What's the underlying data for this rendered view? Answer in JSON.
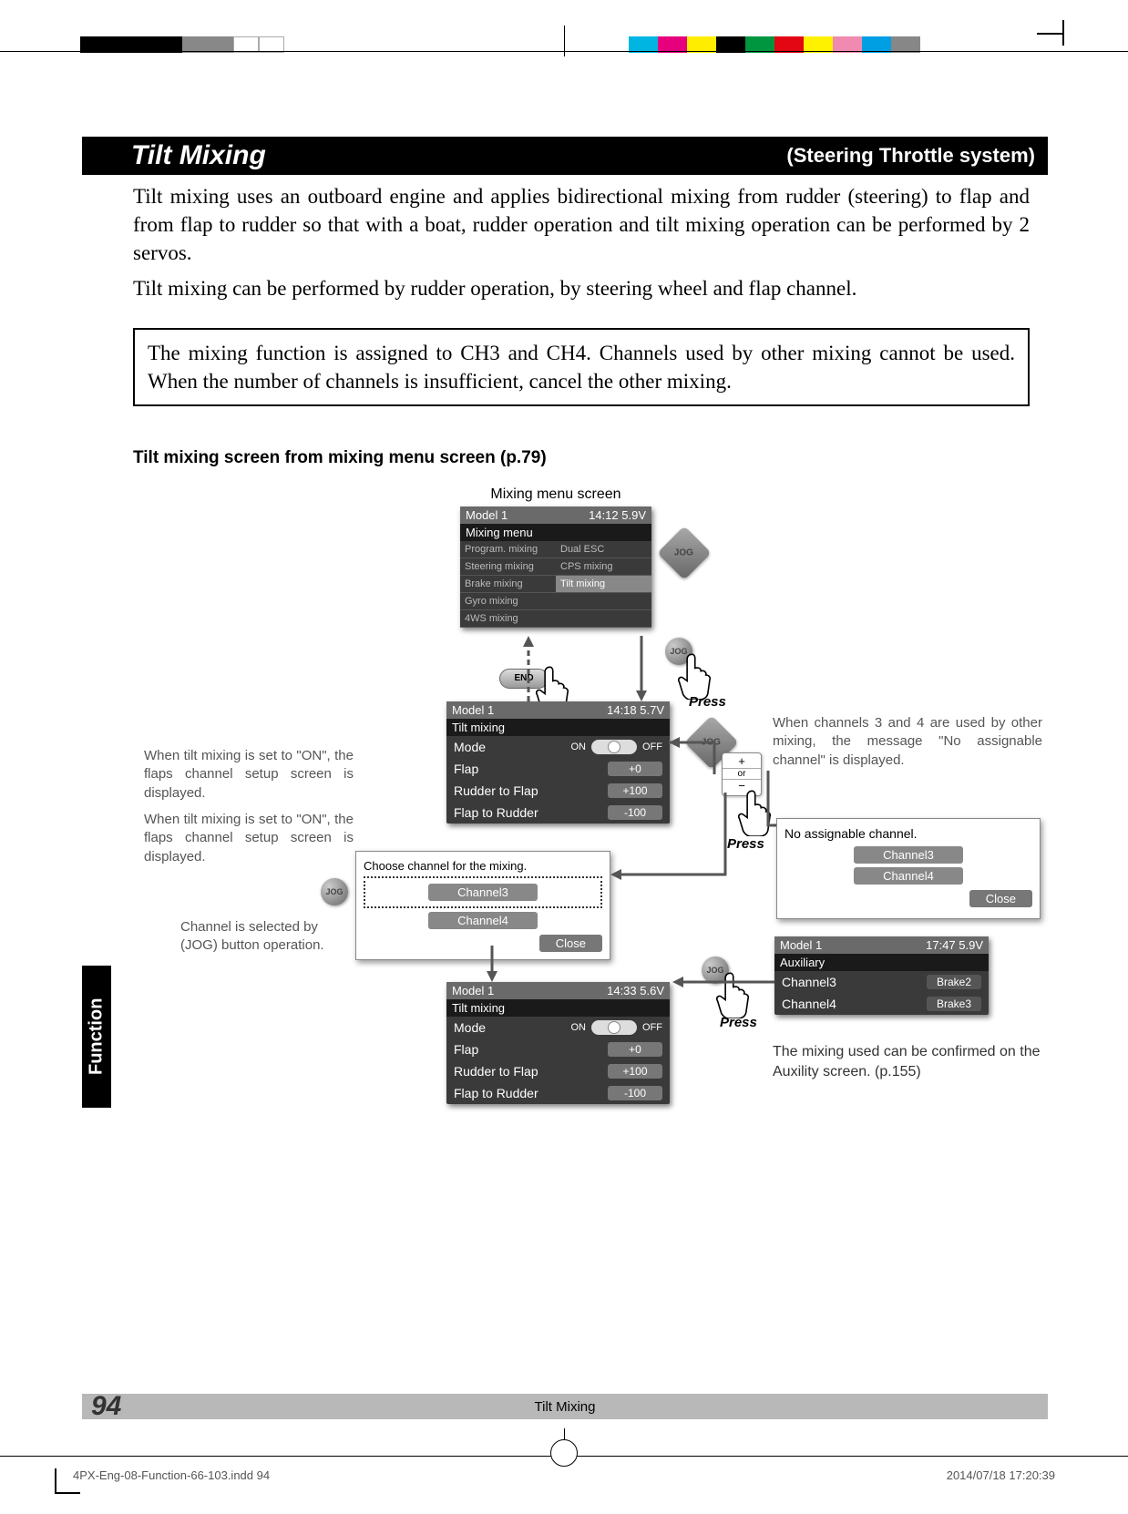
{
  "header": {
    "title": "Tilt Mixing",
    "subtitle": "(Steering Throttle system)"
  },
  "intro": {
    "p1": "Tilt mixing uses an outboard engine and applies bidirectional mixing from rudder (steering) to flap and from flap to rudder so that with a boat, rudder operation and tilt mixing operation can be performed by 2 servos.",
    "p2": "Tilt mixing can be performed by rudder operation, by steering wheel and flap channel."
  },
  "note": "The mixing function is assigned to CH3 and CH4. Channels used by other mixing cannot be used. When the number of channels is insufficient, cancel the other mixing.",
  "subhead": "Tilt mixing screen from mixing menu screen (p.79)",
  "diagram": {
    "mixing_menu_caption": "Mixing menu screen",
    "mixing_menu": {
      "header_l": "Model 1",
      "header_r": "14:12 5.9V",
      "sub": "Mixing menu",
      "rows": [
        [
          "Program. mixing",
          "Dual ESC"
        ],
        [
          "Steering mixing",
          "CPS mixing"
        ],
        [
          "Brake mixing",
          "Tilt mixing"
        ],
        [
          "Gyro mixing",
          ""
        ],
        [
          "4WS mixing",
          ""
        ]
      ],
      "highlight": "Tilt mixing"
    },
    "press": "Press",
    "end_label": "END",
    "tilt_screen": {
      "header_l": "Model 1",
      "header_r": "14:18 5.7V",
      "sub": "Tilt mixing",
      "rows": [
        {
          "label": "Mode",
          "ctrl": "toggle",
          "on": "ON",
          "off": "OFF"
        },
        {
          "label": "Flap",
          "val": "+0"
        },
        {
          "label": "Rudder to Flap",
          "val": "+100"
        },
        {
          "label": "Flap to Rudder",
          "val": "-100"
        }
      ]
    },
    "tilt_screen2": {
      "header_l": "Model 1",
      "header_r": "14:33 5.6V"
    },
    "choose": {
      "title": "Choose channel for the mixing.",
      "c3": "Channel3",
      "c4": "Channel4",
      "close": "Close"
    },
    "noassign": {
      "title": "No assignable channel.",
      "c3": "Channel3",
      "c4": "Channel4",
      "close": "Close"
    },
    "aux": {
      "header_l": "Model 1",
      "header_r": "17:47 5.9V",
      "sub": "Auxiliary",
      "rows": [
        {
          "l": "Channel3",
          "r": "Brake2"
        },
        {
          "l": "Channel4",
          "r": "Brake3"
        }
      ]
    },
    "plusminus": {
      "plus": "+",
      "or": "or",
      "minus": "−"
    },
    "annot_left1": "When tilt mixing is set to \"ON\", the flaps channel setup screen is displayed.",
    "annot_left2": "When tilt mixing is set to \"ON\", the flaps channel setup screen is displayed.",
    "annot_jog": "Channel is selected by (JOG) button operation.",
    "annot_right1": "When channels 3 and 4 are used by other mixing, the message \"No assignable channel\" is displayed.",
    "annot_right2": "The mixing used can be confirmed on the Auxility screen. (p.155)"
  },
  "sidebar": "Function",
  "footer": {
    "title": "Tilt Mixing",
    "page": "94"
  },
  "regmarks": {
    "colors": [
      "#00b5e2",
      "#e6007e",
      "#ffed00",
      "#000000",
      "#009640",
      "#e30613",
      "#fff200",
      "#f08ab1",
      "#009fe3",
      "#878787"
    ],
    "file": "4PX-Eng-08-Function-66-103.indd   94",
    "date": "2014/07/18   17:20:39"
  }
}
